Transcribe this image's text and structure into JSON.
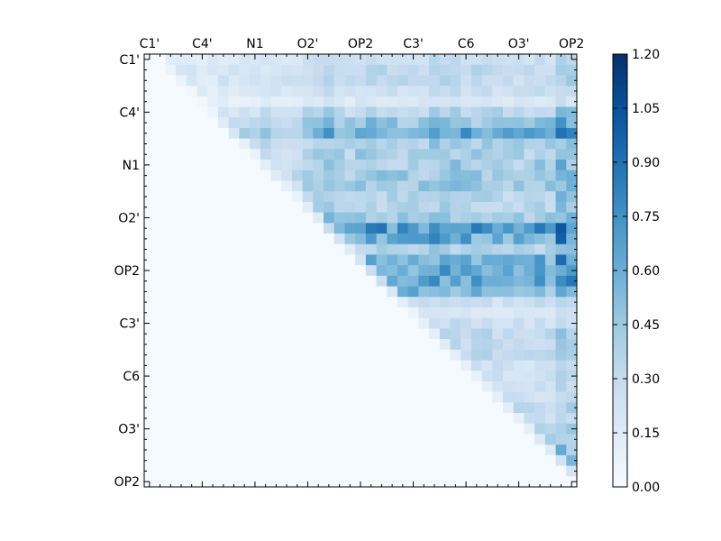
{
  "chart_data": {
    "type": "heatmap",
    "title": "",
    "xlabel": "",
    "ylabel": "",
    "grid": false,
    "legend": "colorbar-right",
    "n": 41,
    "x_tick_labels": [
      "C1'",
      "C4'",
      "N1",
      "O2'",
      "OP2",
      "C3'",
      "C6",
      "O3'",
      "OP2"
    ],
    "y_tick_labels": [
      "C1'",
      "C4'",
      "N1",
      "O2'",
      "OP2",
      "C3'",
      "C6",
      "O3'",
      "OP2"
    ],
    "tick_positions": [
      0,
      5,
      10,
      15,
      20,
      25,
      30,
      35,
      40
    ],
    "colorbar": {
      "min": 0.0,
      "max": 1.2,
      "ticks": [
        0.0,
        0.15,
        0.3,
        0.45,
        0.6,
        0.75,
        0.9,
        1.05,
        1.2
      ],
      "tick_labels": [
        "0.00",
        "0.15",
        "0.30",
        "0.45",
        "0.60",
        "0.75",
        "0.90",
        "1.05",
        "1.20"
      ]
    },
    "colormap": [
      "#f7fbff",
      "#deebf7",
      "#c6dbef",
      "#9ecae1",
      "#6baed6",
      "#4292c6",
      "#2171b5",
      "#08519c",
      "#08306b"
    ],
    "row_profile": [
      0.1,
      0.15,
      0.15,
      0.1,
      0.05,
      0.2,
      0.35,
      0.6,
      0.25,
      0.25,
      0.25,
      0.3,
      0.3,
      0.2,
      0.2,
      0.3,
      0.75,
      0.55,
      0.2,
      0.5,
      0.55,
      0.6,
      0.45,
      0.1,
      0.05,
      0.1,
      0.15,
      0.15,
      0.15,
      0.1,
      0.1,
      0.1,
      0.1,
      0.15,
      0.15,
      0.2,
      0.2,
      0.25,
      0.25,
      0.2,
      0.05
    ],
    "col_profile": [
      0.0,
      0.0,
      0.3,
      0.3,
      0.25,
      0.2,
      0.2,
      0.3,
      0.25,
      0.3,
      0.25,
      0.35,
      0.35,
      0.3,
      0.3,
      0.6,
      0.6,
      0.7,
      0.6,
      0.5,
      0.75,
      0.7,
      0.7,
      0.6,
      0.6,
      0.65,
      0.6,
      0.8,
      0.75,
      0.75,
      0.7,
      0.65,
      0.65,
      0.6,
      0.55,
      0.6,
      0.55,
      0.7,
      0.6,
      1.15,
      0.9
    ],
    "background_value": 0.01
  }
}
